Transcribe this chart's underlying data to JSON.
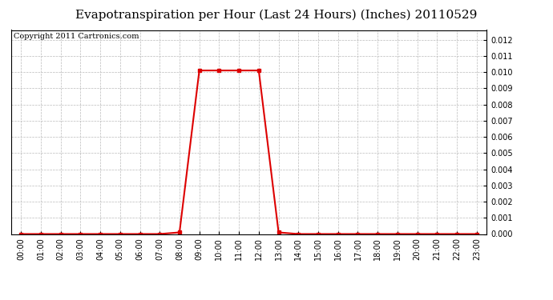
{
  "title": "Evapotranspiration per Hour (Last 24 Hours) (Inches) 20110529",
  "copyright": "Copyright 2011 Cartronics.com",
  "hours": [
    0,
    1,
    2,
    3,
    4,
    5,
    6,
    7,
    8,
    9,
    10,
    11,
    12,
    13,
    14,
    15,
    16,
    17,
    18,
    19,
    20,
    21,
    22,
    23
  ],
  "values": [
    0.0,
    0.0,
    0.0,
    0.0,
    0.0,
    0.0,
    0.0,
    0.0,
    0.0001,
    0.0101,
    0.0101,
    0.0101,
    0.0101,
    0.0001,
    0.0,
    0.0,
    0.0,
    0.0,
    0.0,
    0.0,
    0.0,
    0.0,
    0.0,
    0.0
  ],
  "line_color": "#dd0000",
  "marker": "s",
  "marker_size": 3,
  "ylim": [
    0,
    0.0126
  ],
  "yticks": [
    0.0,
    0.001,
    0.002,
    0.003,
    0.004,
    0.005,
    0.006,
    0.007,
    0.008,
    0.009,
    0.01,
    0.011,
    0.012
  ],
  "background_color": "#ffffff",
  "grid_color": "#bbbbbb",
  "title_fontsize": 11,
  "copyright_fontsize": 7,
  "tick_fontsize": 7
}
